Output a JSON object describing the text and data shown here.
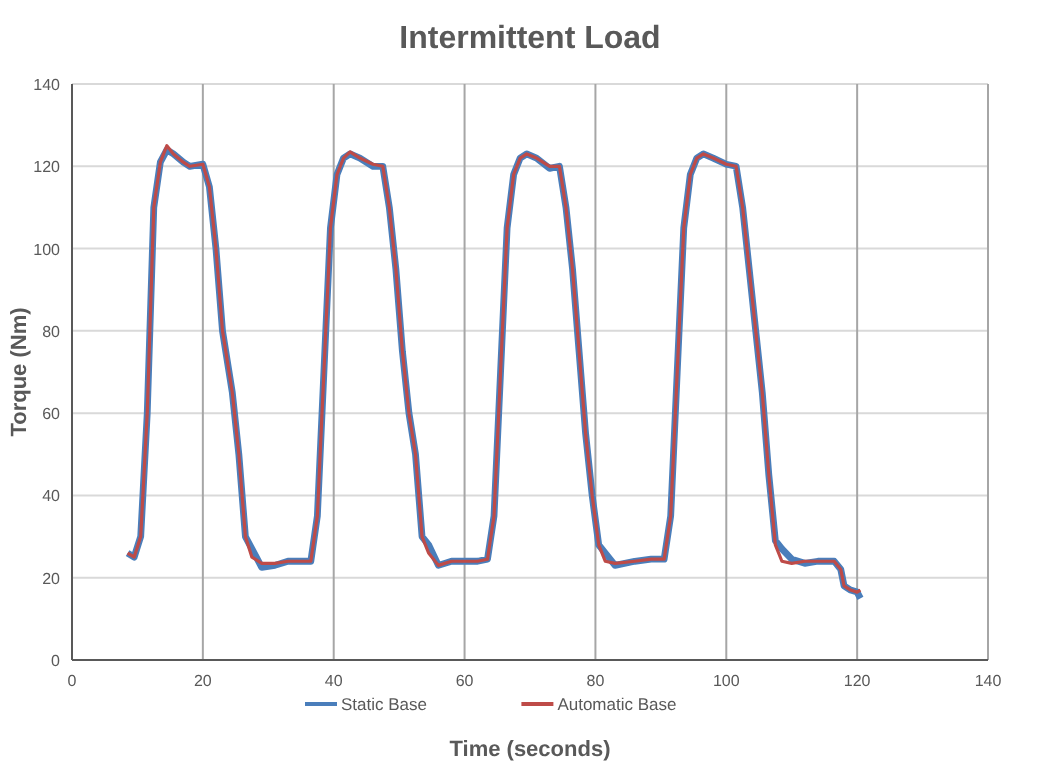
{
  "chart_data": {
    "type": "line",
    "title": "Intermittent Load",
    "xlabel": "Time (seconds)",
    "ylabel": "Torque (Nm)",
    "x": [
      8.5,
      9.5,
      10.5,
      11.5,
      12.5,
      13.5,
      14.5,
      15.5,
      17,
      18,
      20,
      21,
      22,
      23,
      24.5,
      25.5,
      26.5,
      27.5,
      29,
      31,
      33,
      35,
      36.5,
      37.5,
      38.5,
      39.5,
      40.5,
      41.5,
      42.5,
      44,
      46,
      47.5,
      48.5,
      49.5,
      50.5,
      51.5,
      52.5,
      53.5,
      54.5,
      56,
      58,
      60,
      62,
      63.5,
      64.5,
      65.5,
      66.5,
      67.5,
      68.5,
      69.5,
      71,
      73,
      74.5,
      75.5,
      76.5,
      77.5,
      78.5,
      79.5,
      80.5,
      81.5,
      83,
      86,
      88.5,
      90.5,
      91.5,
      92.5,
      93.5,
      94.5,
      95.5,
      96.5,
      98,
      100,
      101.5,
      102.5,
      103.5,
      104.5,
      105.5,
      106.5,
      107.5,
      108.5,
      110,
      112,
      114,
      116.5,
      117.5,
      118,
      119,
      120,
      120.5
    ],
    "series": [
      {
        "name": "Static Base",
        "color": "#4a7ebb",
        "values": [
          26,
          25,
          30,
          60,
          110,
          121,
          124,
          123,
          121,
          120,
          120.5,
          115,
          100,
          80,
          65,
          50,
          30,
          27,
          22.5,
          23,
          24,
          24,
          24,
          35,
          70,
          105,
          118,
          122,
          123,
          122,
          120,
          120,
          110,
          95,
          75,
          60,
          50,
          30,
          28,
          23,
          24,
          24,
          24,
          24.5,
          35,
          70,
          105,
          118,
          122,
          123,
          122,
          119.5,
          120,
          110,
          95,
          75,
          55,
          40,
          28,
          26,
          23,
          24,
          24.5,
          24.5,
          35,
          70,
          105,
          118,
          122,
          123,
          122,
          120.5,
          120,
          110,
          95,
          80,
          65,
          45,
          29,
          27,
          24.5,
          23.5,
          24,
          24,
          22,
          18,
          17,
          16.5,
          15
        ]
      },
      {
        "name": "Automatic Base",
        "color": "#be4b48",
        "values": [
          26,
          25,
          30,
          60,
          110,
          121,
          125,
          123,
          121,
          120,
          120.5,
          115,
          100,
          80,
          65,
          50,
          30,
          25,
          23.5,
          23.5,
          24,
          24,
          24,
          35,
          70,
          105,
          118,
          122,
          123.5,
          122,
          120.5,
          120,
          110,
          95,
          75,
          60,
          50,
          30,
          26,
          23,
          24,
          24,
          24,
          24.5,
          35,
          70,
          105,
          118,
          122,
          123,
          122,
          120,
          120,
          110,
          95,
          75,
          55,
          40,
          28,
          24,
          23.5,
          24,
          24.5,
          24.5,
          35,
          70,
          105,
          118,
          122,
          123,
          122,
          120.5,
          120,
          110,
          95,
          80,
          65,
          45,
          28,
          24,
          23.5,
          24,
          24,
          24,
          22,
          18,
          17,
          16.5,
          17
        ]
      }
    ],
    "xlim": [
      0,
      140
    ],
    "xticks": [
      0,
      20,
      40,
      60,
      80,
      100,
      120,
      140
    ],
    "ylim": [
      0,
      140
    ],
    "yticks": [
      0,
      20,
      40,
      60,
      80,
      100,
      120,
      140
    ],
    "grid": true,
    "legend": "bottom",
    "line_style": "solid",
    "marker": "none"
  }
}
